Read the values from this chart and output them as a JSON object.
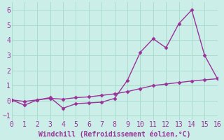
{
  "x": [
    0,
    1,
    2,
    3,
    4,
    5,
    6,
    7,
    8,
    9,
    10,
    11,
    12,
    13,
    14,
    15,
    16
  ],
  "y_upper": [
    0.05,
    -0.3,
    0.05,
    0.2,
    -0.5,
    -0.2,
    -0.15,
    -0.1,
    0.15,
    1.35,
    3.2,
    4.1,
    3.5,
    5.1,
    6.0,
    3.0,
    1.45
  ],
  "y_lower": [
    0.05,
    -0.05,
    0.05,
    0.15,
    0.1,
    0.2,
    0.25,
    0.35,
    0.45,
    0.6,
    0.8,
    1.0,
    1.1,
    1.2,
    1.3,
    1.38,
    1.45
  ],
  "line_color": "#993399",
  "bg_color": "#cceee8",
  "grid_color": "#aaddcc",
  "xlabel": "Windchill (Refroidissement éolien,°C)",
  "xlabel_color": "#993399",
  "xlim": [
    0,
    16
  ],
  "ylim": [
    -1.3,
    6.5
  ],
  "yticks": [
    -1,
    0,
    1,
    2,
    3,
    4,
    5,
    6
  ],
  "xticks": [
    0,
    1,
    2,
    3,
    4,
    5,
    6,
    7,
    8,
    9,
    10,
    11,
    12,
    13,
    14,
    15,
    16
  ],
  "marker": "D",
  "markersize": 2.5,
  "linewidth": 1.0,
  "xlabel_fontsize": 7.0,
  "tick_fontsize": 7.0
}
